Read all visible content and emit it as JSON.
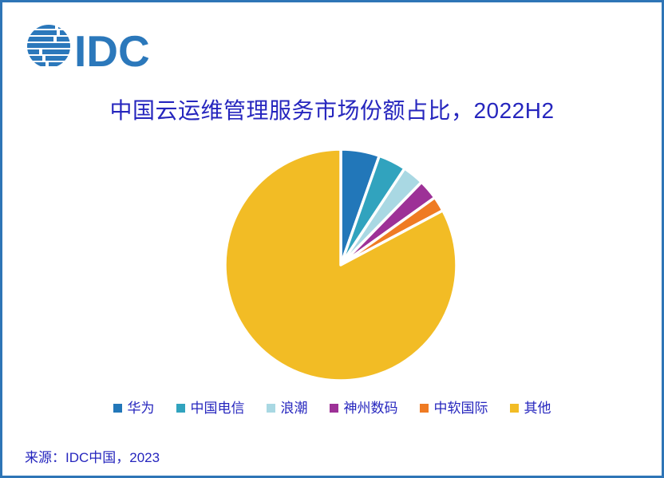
{
  "page": {
    "background": "#FFFFFF",
    "border_color": "#2E75B6"
  },
  "logo": {
    "text": "IDC",
    "color": "#2B78BB"
  },
  "title": {
    "text": "中国云运维管理服务市场份额占比，2022H2",
    "color": "#2626BE"
  },
  "source": {
    "text": "来源：IDC中国，2023",
    "color": "#2626BE"
  },
  "chart_data": {
    "type": "pie",
    "title": "中国云运维管理服务市场份额占比，2022H2",
    "unit": "percent market share (estimated from slice angles; no data labels shown)",
    "start_angle_deg": 0,
    "direction": "clockwise",
    "slice_gap_color": "#FFFFFF",
    "legend_position": "bottom",
    "series": [
      {
        "label": "华为",
        "value": 5.4,
        "color": "#2277B9"
      },
      {
        "label": "中国电信",
        "value": 3.9,
        "color": "#31A3BE"
      },
      {
        "label": "浪潮",
        "value": 3.0,
        "color": "#A9D8E3"
      },
      {
        "label": "神州数码",
        "value": 2.8,
        "color": "#9D3197"
      },
      {
        "label": "中软国际",
        "value": 2.1,
        "color": "#EF7B23"
      },
      {
        "label": "其他",
        "value": 82.8,
        "color": "#F2BC25"
      }
    ]
  }
}
